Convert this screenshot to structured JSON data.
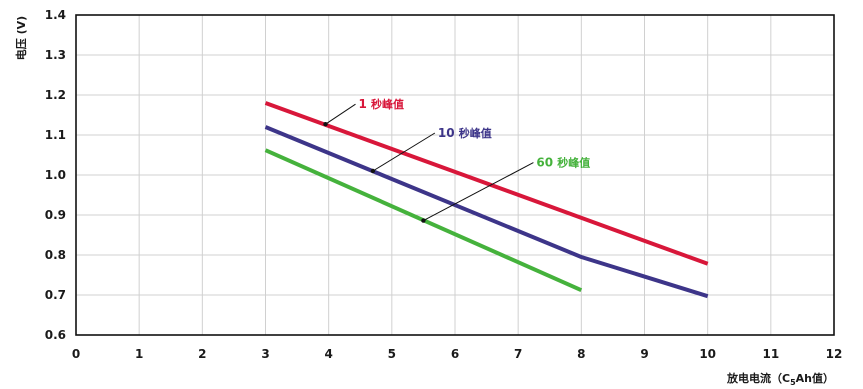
{
  "chart_data": {
    "type": "line",
    "title": "",
    "xlabel_main": "放电电流",
    "xlabel_open": "（C",
    "xlabel_sub": "5",
    "xlabel_close": "Ah值）",
    "ylabel": "电压 (V)",
    "xlim": [
      0,
      12
    ],
    "ylim": [
      0.6,
      1.4
    ],
    "x_ticks": [
      "0",
      "1",
      "2",
      "3",
      "4",
      "5",
      "6",
      "7",
      "8",
      "9",
      "10",
      "11",
      "12"
    ],
    "y_ticks": [
      "0.6",
      "0.7",
      "0.8",
      "0.9",
      "1.0",
      "1.1",
      "1.2",
      "1.3",
      "1.4"
    ],
    "grid": true,
    "series": [
      {
        "name": "1 秒峰值",
        "num": "1",
        "suffix": "秒峰值",
        "color": "#d8173a",
        "points": [
          [
            3,
            1.18
          ],
          [
            10,
            0.778
          ]
        ],
        "callout_anchor": [
          3.95,
          1.127
        ]
      },
      {
        "name": "10 秒峰值",
        "num": "10",
        "suffix": "秒峰值",
        "color": "#3d3589",
        "points": [
          [
            3,
            1.12
          ],
          [
            8,
            0.795
          ],
          [
            10,
            0.697
          ]
        ],
        "callout_anchor": [
          4.7,
          1.01
        ]
      },
      {
        "name": "60 秒峰值",
        "num": "60",
        "suffix": "秒峰值",
        "color": "#45b23c",
        "points": [
          [
            3,
            1.062
          ],
          [
            8,
            0.712
          ]
        ],
        "callout_anchor": [
          5.5,
          0.886
        ]
      }
    ]
  }
}
